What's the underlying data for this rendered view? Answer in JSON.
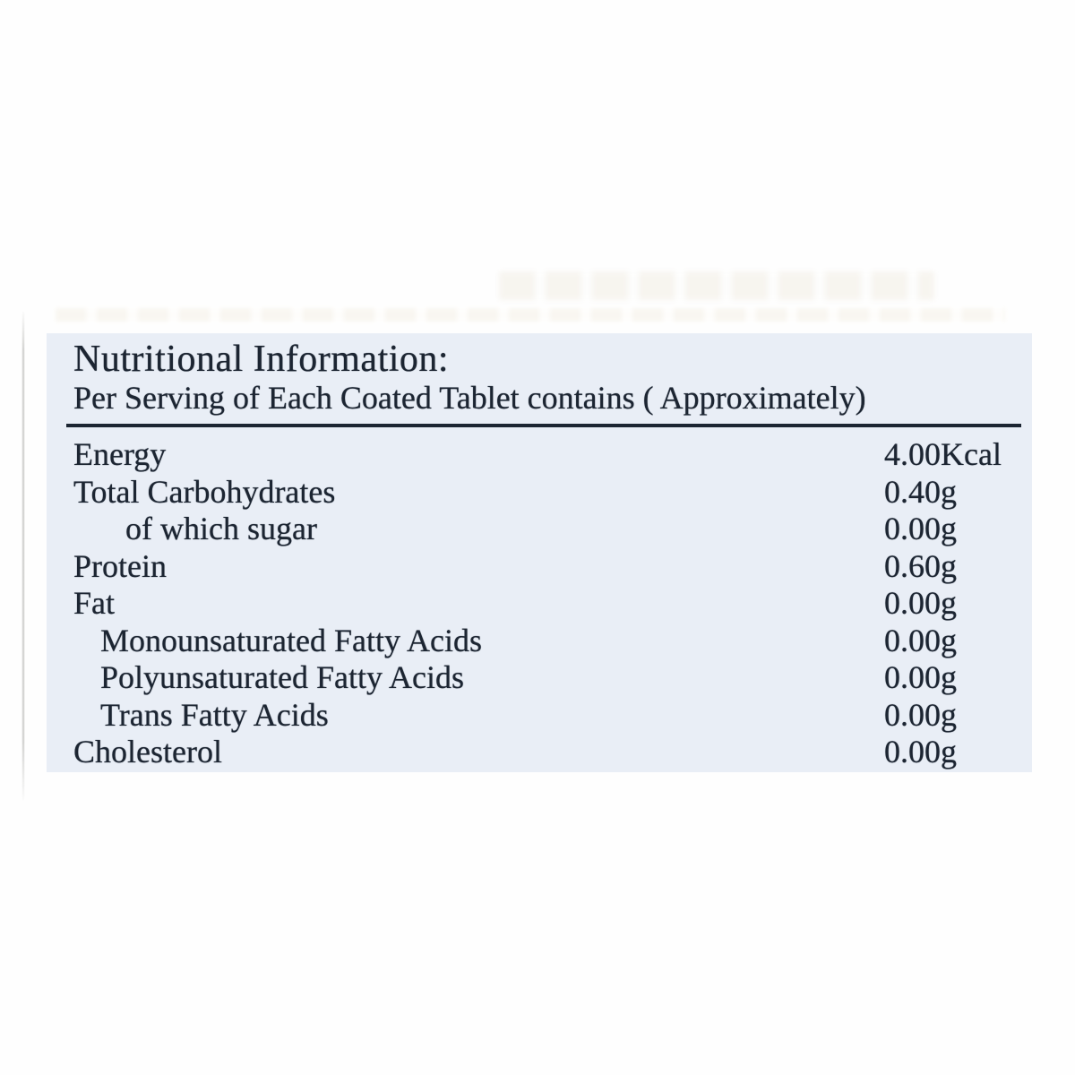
{
  "panel": {
    "background_color": "#e9eef6",
    "text_color": "#1c2532",
    "title": "Nutritional Information:",
    "subtitle": "Per Serving of Each Coated Tablet contains ( Approximately)",
    "rows": [
      {
        "label": "Energy",
        "value": "4.00Kcal",
        "indent": 0
      },
      {
        "label": "Total Carbohydrates",
        "value": "0.40g",
        "indent": 0
      },
      {
        "label": "of which sugar",
        "value": "0.00g",
        "indent": 2
      },
      {
        "label": "Protein",
        "value": "0.60g",
        "indent": 0
      },
      {
        "label": "Fat",
        "value": "0.00g",
        "indent": 0
      },
      {
        "label": "Monounsaturated Fatty Acids",
        "value": "0.00g",
        "indent": 1
      },
      {
        "label": "Polyunsaturated Fatty Acids",
        "value": "0.00g",
        "indent": 1
      },
      {
        "label": "Trans Fatty Acids",
        "value": "0.00g",
        "indent": 1
      },
      {
        "label": "Cholesterol",
        "value": "0.00g",
        "indent": 0
      }
    ]
  }
}
